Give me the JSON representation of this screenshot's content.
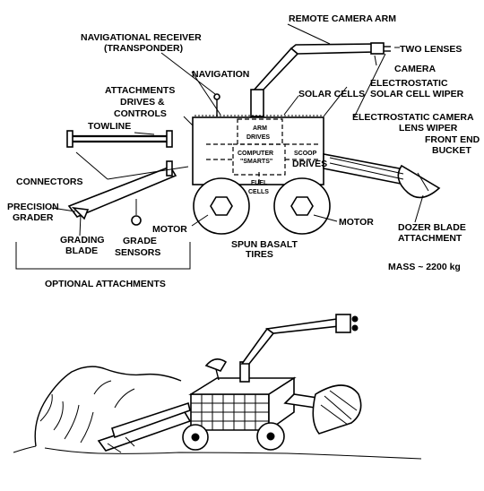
{
  "labels": {
    "remote_camera_arm": "REMOTE CAMERA ARM",
    "nav_receiver_1": "NAVIGATIONAL RECEIVER",
    "nav_receiver_2": "(TRANSPONDER)",
    "two_lenses": "TWO LENSES",
    "navigation": "NAVIGATION",
    "camera": "CAMERA",
    "attach_1": "ATTACHMENTS",
    "attach_2": "DRIVES &",
    "attach_3": "CONTROLS",
    "solar_cells": "SOLAR CELLS",
    "solar_wiper_1": "ELECTROSTATIC",
    "solar_wiper_2": "SOLAR CELL WIPER",
    "lens_wiper_1": "ELECTROSTATIC CAMERA",
    "lens_wiper_2": "LENS WIPER",
    "towline": "TOWLINE",
    "arm_drives_1": "ARM",
    "arm_drives_2": "DRIVES",
    "computer_1": "COMPUTER",
    "computer_2": "\"SMARTS\"",
    "scoop_1": "SCOOP",
    "scoop_2": "DRIVES",
    "fuel_1": "FUEL",
    "fuel_2": "CELLS",
    "front_bucket_1": "FRONT END",
    "front_bucket_2": "BUCKET",
    "connectors": "CONNECTORS",
    "precision_1": "PRECISION",
    "precision_2": "GRADER",
    "motor_left": "MOTOR",
    "motor_right": "MOTOR",
    "dozer_1": "DOZER BLADE",
    "dozer_2": "ATTACHMENT",
    "grading_1": "GRADING",
    "grading_2": "BLADE",
    "grade_sensors_1": "GRADE",
    "grade_sensors_2": "SENSORS",
    "tires_1": "SPUN BASALT",
    "tires_2": "TIRES",
    "mass": "MASS ~ 2200 kg",
    "optional": "OPTIONAL ATTACHMENTS"
  }
}
